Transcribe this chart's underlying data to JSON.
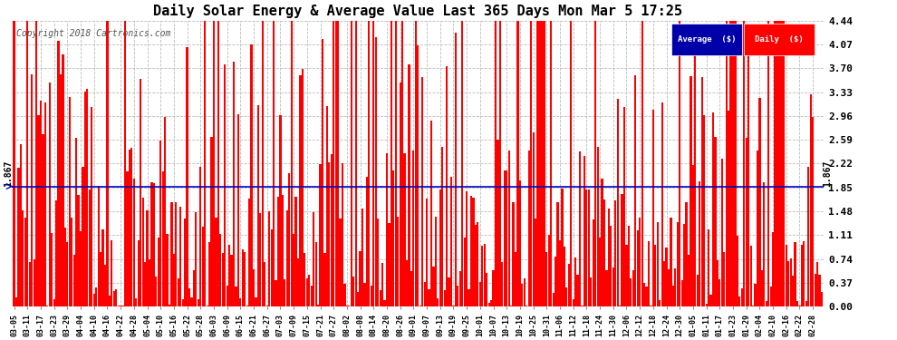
{
  "title": "Daily Solar Energy & Average Value Last 365 Days Mon Mar 5 17:25",
  "copyright": "Copyright 2018 Cartronics.com",
  "average_value": 1.867,
  "average_label": "1.867",
  "ylim": [
    0.0,
    4.44
  ],
  "yticks": [
    0.0,
    0.37,
    0.74,
    1.11,
    1.48,
    1.85,
    2.22,
    2.59,
    2.96,
    3.33,
    3.7,
    4.07,
    4.44
  ],
  "bar_color": "#FF0000",
  "average_line_color": "#0000BB",
  "background_color": "#FFFFFF",
  "grid_color": "#BBBBBB",
  "legend_avg_bg": "#0000AA",
  "legend_daily_bg": "#FF0000",
  "legend_text_color": "#FFFFFF",
  "title_color": "#000000",
  "figsize": [
    9.9,
    3.75
  ],
  "dpi": 100
}
